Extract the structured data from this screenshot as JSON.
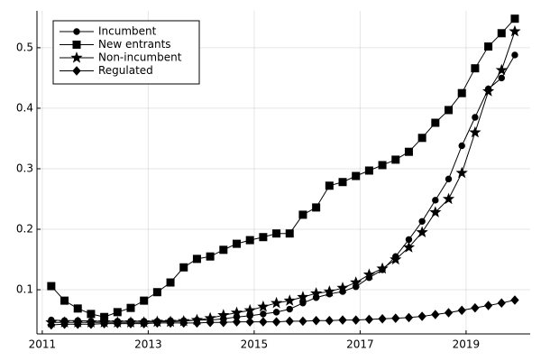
{
  "chart_data": {
    "type": "line",
    "x": [
      2011.17,
      2011.42,
      2011.67,
      2011.92,
      2012.17,
      2012.42,
      2012.67,
      2012.92,
      2013.17,
      2013.42,
      2013.67,
      2013.92,
      2014.17,
      2014.42,
      2014.67,
      2014.92,
      2015.17,
      2015.42,
      2015.67,
      2015.92,
      2016.17,
      2016.42,
      2016.67,
      2016.92,
      2017.17,
      2017.42,
      2017.67,
      2017.92,
      2018.17,
      2018.42,
      2018.67,
      2018.92,
      2019.17,
      2019.42,
      2019.67,
      2019.92
    ],
    "series": [
      {
        "name": "Incumbent",
        "color": "#000000",
        "marker": "circle",
        "values": [
          0.05,
          0.049,
          0.049,
          0.048,
          0.048,
          0.048,
          0.048,
          0.048,
          0.048,
          0.049,
          0.049,
          0.05,
          0.05,
          0.052,
          0.055,
          0.057,
          0.06,
          0.063,
          0.068,
          0.078,
          0.087,
          0.093,
          0.097,
          0.105,
          0.12,
          0.133,
          0.155,
          0.183,
          0.213,
          0.248,
          0.283,
          0.338,
          0.385,
          0.432,
          0.45,
          0.488
        ]
      },
      {
        "name": "New entrants",
        "color": "#000000",
        "marker": "square",
        "values": [
          0.106,
          0.082,
          0.069,
          0.06,
          0.055,
          0.063,
          0.07,
          0.082,
          0.096,
          0.112,
          0.137,
          0.151,
          0.155,
          0.166,
          0.176,
          0.182,
          0.187,
          0.193,
          0.193,
          0.224,
          0.236,
          0.272,
          0.278,
          0.288,
          0.297,
          0.306,
          0.315,
          0.328,
          0.351,
          0.376,
          0.397,
          0.425,
          0.466,
          0.502,
          0.524,
          0.548
        ]
      },
      {
        "name": "Non-incumbent",
        "color": "#000000",
        "marker": "star",
        "values": [
          0.046,
          0.046,
          0.046,
          0.046,
          0.046,
          0.046,
          0.046,
          0.046,
          0.047,
          0.047,
          0.048,
          0.05,
          0.053,
          0.058,
          0.062,
          0.066,
          0.072,
          0.078,
          0.082,
          0.088,
          0.094,
          0.097,
          0.103,
          0.112,
          0.125,
          0.135,
          0.15,
          0.17,
          0.195,
          0.228,
          0.25,
          0.293,
          0.36,
          0.428,
          0.463,
          0.527
        ]
      },
      {
        "name": "Regulated",
        "color": "#000000",
        "marker": "diamond",
        "values": [
          0.042,
          0.043,
          0.043,
          0.043,
          0.044,
          0.044,
          0.044,
          0.044,
          0.045,
          0.045,
          0.045,
          0.045,
          0.046,
          0.046,
          0.047,
          0.047,
          0.047,
          0.047,
          0.048,
          0.048,
          0.049,
          0.049,
          0.05,
          0.05,
          0.051,
          0.052,
          0.053,
          0.054,
          0.056,
          0.059,
          0.062,
          0.066,
          0.07,
          0.074,
          0.078,
          0.083
        ]
      }
    ],
    "xlim": [
      2010.9,
      2020.21
    ],
    "xticks": [
      2011,
      2013,
      2015,
      2017,
      2019
    ],
    "ylim": [
      0.027,
      0.561
    ],
    "yticks": [
      0.1,
      0.2,
      0.3,
      0.4,
      0.5
    ],
    "grid": true,
    "legend": "top-left"
  }
}
